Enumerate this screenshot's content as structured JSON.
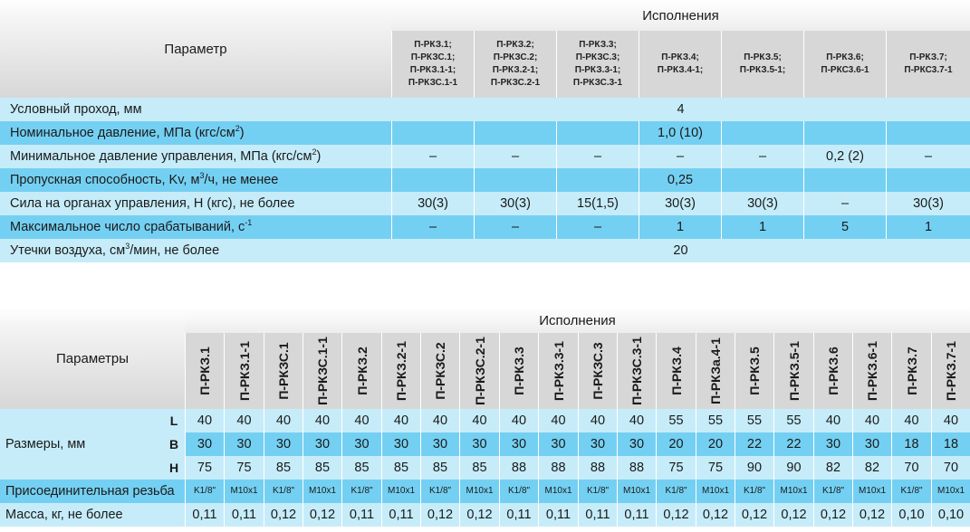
{
  "table1": {
    "param_header": "Параметр",
    "ispol_header": "Исполнения",
    "variants": [
      [
        "П-РКЗ.1;",
        "П-РКЗС.1;",
        "П-РКЗ.1-1;",
        "П-РКЗС.1-1"
      ],
      [
        "П-РКЗ.2;",
        "П-РКЗС.2;",
        "П-РКЗ.2-1;",
        "П-РКЗС.2-1"
      ],
      [
        "П-РКЗ.3;",
        "П-РКЗС.3;",
        "П-РКЗ.3-1;",
        "П-РКЗС.3-1"
      ],
      [
        "П-РКЗ.4;",
        "П-РКЗ.4-1;"
      ],
      [
        "П-РКЗ.5;",
        "П-РКЗ.5-1;"
      ],
      [
        "П-РКЗ.6;",
        "П-РКС3.6-1"
      ],
      [
        "П-РКЗ.7;",
        "П-РКС3.7-1"
      ]
    ],
    "rows": [
      {
        "label": "Условный проход, мм",
        "span": "4"
      },
      {
        "label": "Номинальное давление, МПа (кгс/см",
        "label_sup": "2",
        "label_tail": ")",
        "cells": [
          "",
          "",
          "",
          "1,0 (10)",
          "",
          "",
          ""
        ]
      },
      {
        "label": "Минимальное давление управления, МПа (кгс/см",
        "label_sup": "2",
        "label_tail": ")",
        "cells": [
          "–",
          "–",
          "–",
          "–",
          "–",
          "0,2 (2)",
          "–"
        ]
      },
      {
        "label": "Пропускная способность, Kv, м",
        "label_sup": "3",
        "label_tail": "/ч, не менее",
        "cells": [
          "",
          "",
          "",
          "0,25",
          "",
          "",
          ""
        ]
      },
      {
        "label": "Сила на органах управления, Н (кгс), не более",
        "cells": [
          "30(3)",
          "30(3)",
          "15(1,5)",
          "30(3)",
          "30(3)",
          "–",
          "30(3)"
        ]
      },
      {
        "label": "Максимальное число срабатываний, с",
        "label_sup": "-1",
        "label_tail": "",
        "cells": [
          "–",
          "–",
          "–",
          "1",
          "1",
          "5",
          "1"
        ]
      },
      {
        "label": "Утечки воздуха,  см",
        "label_sup": "3",
        "label_tail": "/мин, не более",
        "span": "20"
      }
    ]
  },
  "table2": {
    "param_header": "Параметры",
    "ispol_header": "Исполнения",
    "variants": [
      "П-РКЗ.1",
      "П-РКЗ.1-1",
      "П-РКЗС.1",
      "П-РКЗС.1-1",
      "П-РКЗ.2",
      "П-РКЗ.2-1",
      "П-РКЗС.2",
      "П-РКЗС.2-1",
      "П-РКЗ.3",
      "П-РКЗ.3-1",
      "П-РКЗС.3",
      "П-РКЗС.3-1",
      "П-РКЗ.4",
      "П-РКЗа.4-1",
      "П-РКЗ.5",
      "П-РКЗ.5-1",
      "П-РКЗ.6",
      "П-РКЗ.6-1",
      "П-РКЗ.7",
      "П-РКЗ.7-1"
    ],
    "sizes_label": "Размеры, мм",
    "size_rows": [
      {
        "sub": "L",
        "values": [
          "40",
          "40",
          "40",
          "40",
          "40",
          "40",
          "40",
          "40",
          "40",
          "40",
          "40",
          "40",
          "55",
          "55",
          "55",
          "55",
          "40",
          "40",
          "40",
          "40"
        ]
      },
      {
        "sub": "B",
        "values": [
          "30",
          "30",
          "30",
          "30",
          "30",
          "30",
          "30",
          "30",
          "30",
          "30",
          "30",
          "30",
          "20",
          "20",
          "22",
          "22",
          "30",
          "30",
          "18",
          "18"
        ]
      },
      {
        "sub": "H",
        "values": [
          "75",
          "75",
          "85",
          "85",
          "85",
          "85",
          "85",
          "85",
          "88",
          "88",
          "88",
          "88",
          "75",
          "75",
          "90",
          "90",
          "82",
          "82",
          "70",
          "70"
        ]
      }
    ],
    "thread_row": {
      "label": "Присоединительная резьба",
      "values": [
        "K1/8\"",
        "M10x1",
        "K1/8\"",
        "M10x1",
        "K1/8\"",
        "M10x1",
        "K1/8\"",
        "M10x1",
        "K1/8\"",
        "M10x1",
        "K1/8\"",
        "M10x1",
        "K1/8\"",
        "M10x1",
        "K1/8\"",
        "M10x1",
        "K1/8\"",
        "M10x1",
        "K1/8\"",
        "M10x1"
      ]
    },
    "mass_row": {
      "label": "Масса, кг, не более",
      "values": [
        "0,11",
        "0,11",
        "0,12",
        "0,12",
        "0,11",
        "0,11",
        "0,12",
        "0,12",
        "0,11",
        "0,11",
        "0,11",
        "0,11",
        "0,12",
        "0,12",
        "0,12",
        "0,12",
        "0,12",
        "0,12",
        "0,10",
        "0,10"
      ]
    }
  }
}
